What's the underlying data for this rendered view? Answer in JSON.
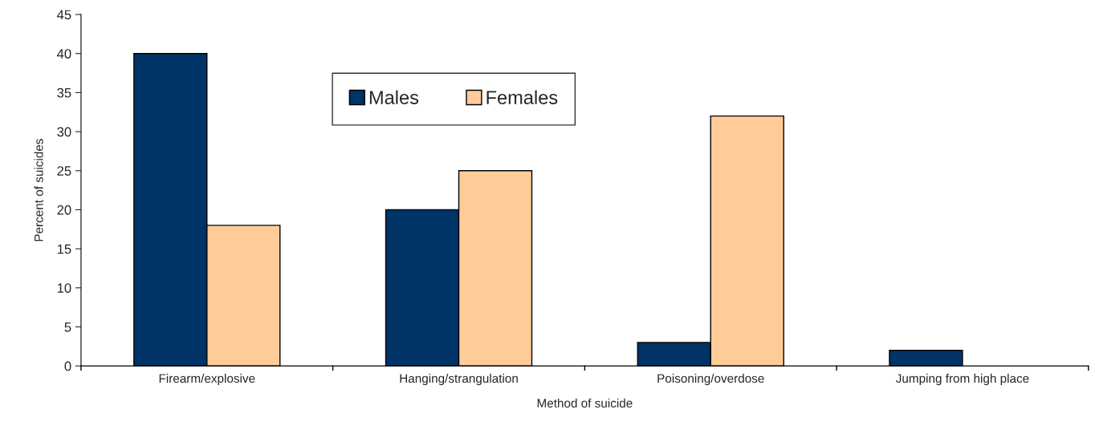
{
  "chart_data": {
    "type": "bar",
    "xlabel": "Method of suicide",
    "ylabel": "Percent of suicides",
    "categories": [
      "Firearm/explosive",
      "Hanging/strangulation",
      "Poisoning/overdose",
      "Jumping from high place"
    ],
    "series": [
      {
        "name": "Males",
        "color": "#003366",
        "values": [
          40,
          20,
          3,
          2
        ]
      },
      {
        "name": "Females",
        "color": "#ffcc99",
        "values": [
          18,
          25,
          32,
          null
        ]
      }
    ],
    "ylim": [
      0,
      45
    ],
    "yticks": [
      0,
      5,
      10,
      15,
      20,
      25,
      30,
      35,
      40,
      45
    ],
    "grid": false,
    "legend": "top"
  }
}
